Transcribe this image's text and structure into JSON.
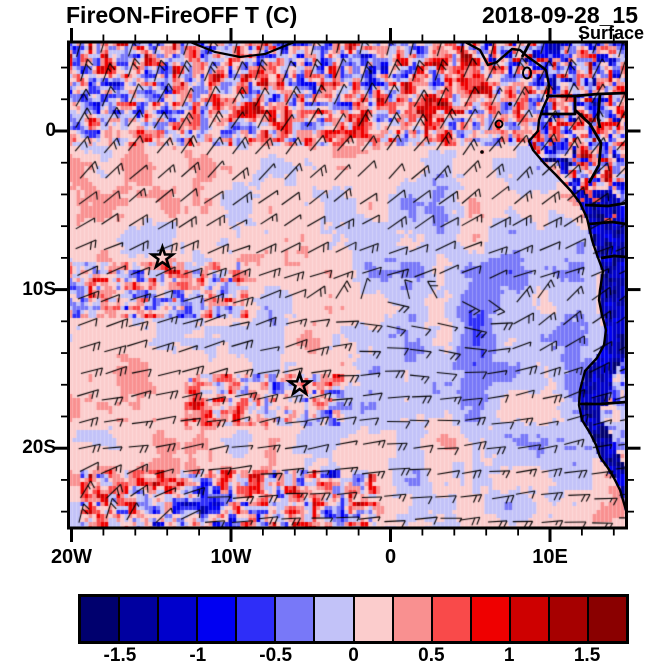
{
  "header": {
    "title": "FireON-FireOFF T (C)",
    "datetime": "2018-09-28_15",
    "level": "Surface"
  },
  "map": {
    "x_axis": {
      "major_ticks": [
        {
          "label": "20W",
          "lon": -20
        },
        {
          "label": "10W",
          "lon": -10
        },
        {
          "label": "0",
          "lon": 0
        },
        {
          "label": "10E",
          "lon": 10
        }
      ],
      "minor_step_deg": 2,
      "lon_range": [
        -20,
        14.8
      ]
    },
    "y_axis": {
      "major_ticks": [
        {
          "label": "0",
          "lat": 0
        },
        {
          "label": "10S",
          "lat": -10
        },
        {
          "label": "20S",
          "lat": -20
        }
      ],
      "minor_step_deg": 2,
      "lat_range": [
        -25.0,
        5.6
      ]
    },
    "markers": [
      {
        "type": "star",
        "lon": -14.3,
        "lat": -8.0
      },
      {
        "type": "star",
        "lon": -5.7,
        "lat": -16.0
      }
    ]
  },
  "colorbar": {
    "colors": [
      "#00006E",
      "#0000A0",
      "#0000CC",
      "#0000F2",
      "#2E2EF8",
      "#7878F8",
      "#C2C2F8",
      "#FBCCCC",
      "#F99090",
      "#F94A4A",
      "#EF0000",
      "#CE0000",
      "#A60000",
      "#8A0000"
    ],
    "tick_labels": [
      "-1.5",
      "-1",
      "-0.5",
      "0",
      "0.5",
      "1",
      "1.5"
    ],
    "tick_values": [
      -1.5,
      -1,
      -0.5,
      0,
      0.5,
      1,
      1.5
    ],
    "cell_value_width": 0.25,
    "value_range": [
      -1.75,
      1.75
    ]
  },
  "chart_data": {
    "type": "heatmap",
    "title": "FireON-FireOFF T (C)",
    "datetime": "2018-09-28_15",
    "level": "Surface",
    "variable": "Temperature difference FireON minus FireOFF",
    "units": "C",
    "overlay": "wind barbs",
    "projection": "lon-lat map, west African coast and SE Atlantic",
    "x_range_lon": [
      -20,
      14.8
    ],
    "y_range_lat": [
      -25.0,
      5.6
    ],
    "x_tick_labels": [
      "20W",
      "10W",
      "0",
      "10E"
    ],
    "y_tick_labels": [
      "0",
      "10S",
      "20S"
    ],
    "colorbar_levels": [
      -1.5,
      -1.25,
      -1,
      -0.75,
      -0.5,
      -0.25,
      0,
      0.25,
      0.5,
      0.75,
      1,
      1.25,
      1.5
    ],
    "colorbar_colors": [
      "#00006E",
      "#0000A0",
      "#0000CC",
      "#0000F2",
      "#2E2EF8",
      "#7878F8",
      "#C2C2F8",
      "#FBCCCC",
      "#F99090",
      "#F94A4A",
      "#EF0000",
      "#CE0000",
      "#A60000",
      "#8A0000"
    ],
    "colorbar_labeled_ticks": [
      -1.5,
      -1,
      -0.5,
      0,
      0.5,
      1,
      1.5
    ],
    "field_summary": {
      "ocean_background_value": 0.15,
      "offshore_cool_pool_value": -0.3,
      "coastal_land_band_value": -1.3,
      "noisy_bands_value_range": [
        -1.75,
        1.75
      ]
    },
    "markers": [
      {
        "type": "star",
        "lon": -14.3,
        "lat": -8.0
      },
      {
        "type": "star",
        "lon": -5.7,
        "lat": -16.0
      }
    ]
  }
}
